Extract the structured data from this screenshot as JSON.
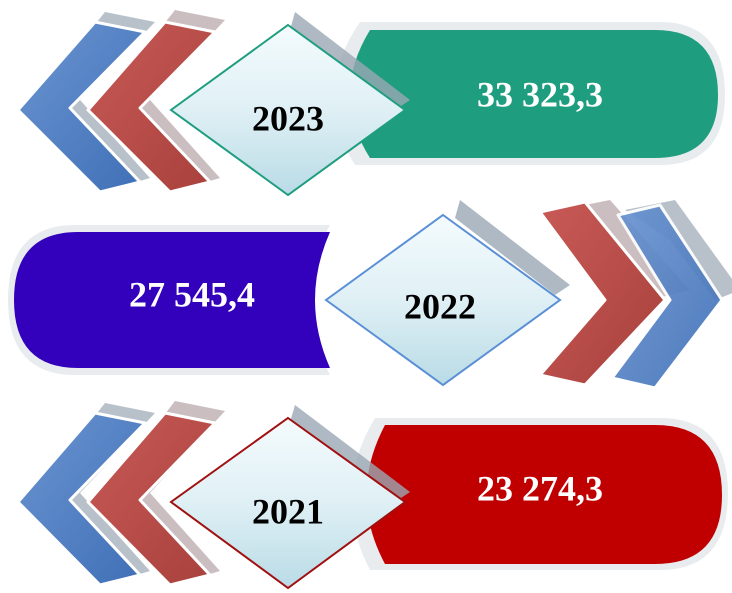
{
  "items": [
    {
      "year": "2023",
      "value": "33 323,3"
    },
    {
      "year": "2022",
      "value": "27 545,4"
    },
    {
      "year": "2021",
      "value": "23 274,3"
    }
  ]
}
